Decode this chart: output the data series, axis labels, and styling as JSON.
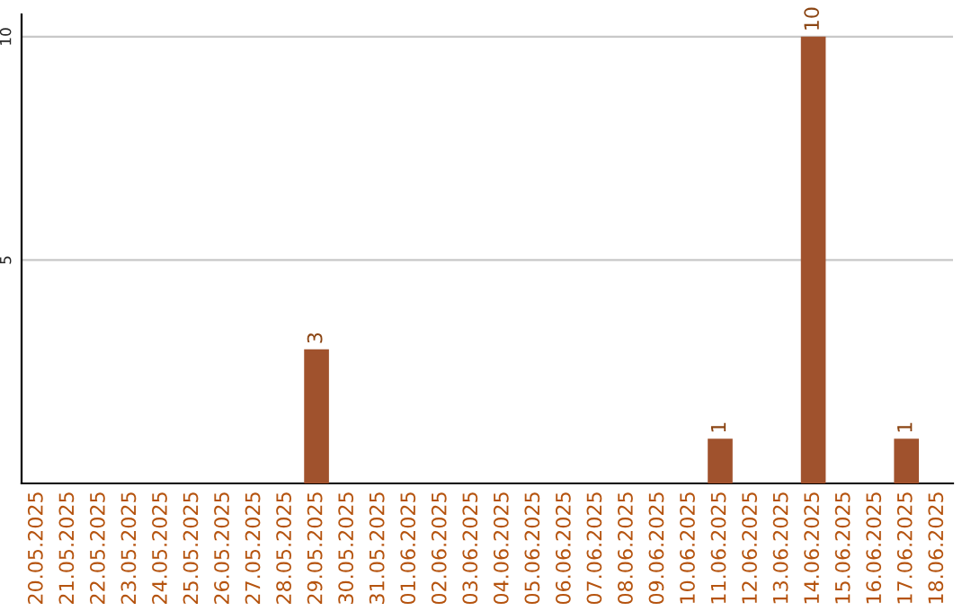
{
  "chart_data": {
    "type": "bar",
    "categories": [
      "20.05.2025",
      "21.05.2025",
      "22.05.2025",
      "23.05.2025",
      "24.05.2025",
      "25.05.2025",
      "26.05.2025",
      "27.05.2025",
      "28.05.2025",
      "29.05.2025",
      "30.05.2025",
      "31.05.2025",
      "01.06.2025",
      "02.06.2025",
      "03.06.2025",
      "04.06.2025",
      "05.06.2025",
      "06.06.2025",
      "07.06.2025",
      "08.06.2025",
      "09.06.2025",
      "10.06.2025",
      "11.06.2025",
      "12.06.2025",
      "13.06.2025",
      "14.06.2025",
      "15.06.2025",
      "16.06.2025",
      "17.06.2025",
      "18.06.2025"
    ],
    "values": [
      0,
      0,
      0,
      0,
      0,
      0,
      0,
      0,
      0,
      3,
      0,
      0,
      0,
      0,
      0,
      0,
      0,
      0,
      0,
      0,
      0,
      0,
      1,
      0,
      0,
      10,
      0,
      0,
      1,
      0
    ],
    "value_labels": [
      null,
      null,
      null,
      null,
      null,
      null,
      null,
      null,
      null,
      "3",
      null,
      null,
      null,
      null,
      null,
      null,
      null,
      null,
      null,
      null,
      null,
      null,
      "1",
      null,
      null,
      "10",
      null,
      null,
      "1",
      null
    ],
    "color": "#a0522d",
    "ylim": [
      0,
      10.5
    ],
    "yticks": [
      5,
      10
    ],
    "grid": "y",
    "legend": false
  }
}
